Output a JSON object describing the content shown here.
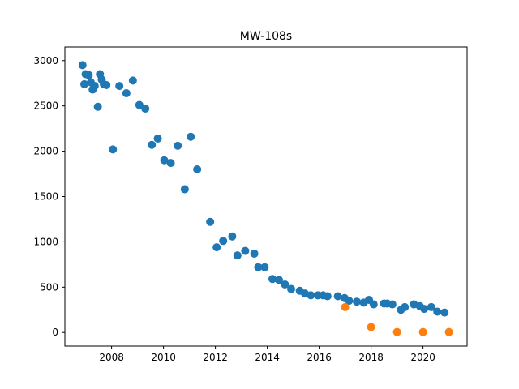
{
  "chart_data": {
    "type": "scatter",
    "title": "MW-108s",
    "xlabel": "",
    "ylabel": "",
    "xlim": [
      2006.2,
      2021.7
    ],
    "ylim": [
      -150,
      3150
    ],
    "grid": false,
    "legend": "none",
    "x_ticks": [
      {
        "value": 2008,
        "label": "2008"
      },
      {
        "value": 2010,
        "label": "2010"
      },
      {
        "value": 2012,
        "label": "2012"
      },
      {
        "value": 2014,
        "label": "2014"
      },
      {
        "value": 2016,
        "label": "2016"
      },
      {
        "value": 2018,
        "label": "2018"
      },
      {
        "value": 2020,
        "label": "2020"
      }
    ],
    "y_ticks": [
      {
        "value": 0,
        "label": "0"
      },
      {
        "value": 500,
        "label": "500"
      },
      {
        "value": 1000,
        "label": "1000"
      },
      {
        "value": 1500,
        "label": "1500"
      },
      {
        "value": 2000,
        "label": "2000"
      },
      {
        "value": 2500,
        "label": "2500"
      },
      {
        "value": 3000,
        "label": "3000"
      }
    ],
    "series": [
      {
        "color": "#1f77b4",
        "points": [
          [
            2006.88,
            2950
          ],
          [
            2006.95,
            2740
          ],
          [
            2007.0,
            2850
          ],
          [
            2007.12,
            2840
          ],
          [
            2007.2,
            2760
          ],
          [
            2007.27,
            2680
          ],
          [
            2007.35,
            2720
          ],
          [
            2007.47,
            2490
          ],
          [
            2007.55,
            2850
          ],
          [
            2007.62,
            2790
          ],
          [
            2007.7,
            2740
          ],
          [
            2007.8,
            2730
          ],
          [
            2008.05,
            2020
          ],
          [
            2008.3,
            2720
          ],
          [
            2008.57,
            2640
          ],
          [
            2008.82,
            2780
          ],
          [
            2009.07,
            2510
          ],
          [
            2009.3,
            2470
          ],
          [
            2009.55,
            2070
          ],
          [
            2009.78,
            2140
          ],
          [
            2010.03,
            1900
          ],
          [
            2010.28,
            1870
          ],
          [
            2010.55,
            2060
          ],
          [
            2010.82,
            1580
          ],
          [
            2011.05,
            2160
          ],
          [
            2011.3,
            1800
          ],
          [
            2011.8,
            1220
          ],
          [
            2012.05,
            940
          ],
          [
            2012.3,
            1010
          ],
          [
            2012.65,
            1060
          ],
          [
            2012.85,
            850
          ],
          [
            2013.15,
            900
          ],
          [
            2013.5,
            870
          ],
          [
            2013.65,
            720
          ],
          [
            2013.9,
            720
          ],
          [
            2014.2,
            590
          ],
          [
            2014.45,
            580
          ],
          [
            2014.68,
            530
          ],
          [
            2014.92,
            480
          ],
          [
            2015.25,
            460
          ],
          [
            2015.45,
            430
          ],
          [
            2015.68,
            410
          ],
          [
            2015.95,
            410
          ],
          [
            2016.15,
            410
          ],
          [
            2016.32,
            400
          ],
          [
            2016.72,
            400
          ],
          [
            2016.98,
            380
          ],
          [
            2017.15,
            350
          ],
          [
            2017.45,
            340
          ],
          [
            2017.72,
            330
          ],
          [
            2017.92,
            360
          ],
          [
            2018.1,
            310
          ],
          [
            2018.5,
            320
          ],
          [
            2018.62,
            320
          ],
          [
            2018.82,
            310
          ],
          [
            2019.15,
            250
          ],
          [
            2019.3,
            280
          ],
          [
            2019.65,
            310
          ],
          [
            2019.88,
            290
          ],
          [
            2020.05,
            260
          ],
          [
            2020.32,
            280
          ],
          [
            2020.55,
            230
          ],
          [
            2020.83,
            220
          ]
        ]
      },
      {
        "color": "#ff7f0e",
        "points": [
          [
            2017.0,
            280
          ],
          [
            2018.0,
            60
          ],
          [
            2019.0,
            5
          ],
          [
            2020.0,
            5
          ],
          [
            2021.0,
            5
          ]
        ]
      }
    ]
  }
}
